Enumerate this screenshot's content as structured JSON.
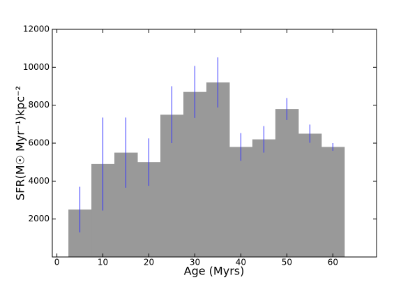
{
  "chart_data": {
    "type": "histogram",
    "x_label": "Age (Myrs)",
    "y_label": "SFR(M☉ Myr⁻¹)kpc⁻²",
    "bins": [
      2.5,
      7.5,
      12.5,
      17.5,
      22.5,
      27.5,
      32.5,
      37.5,
      42.5,
      47.5,
      52.5,
      57.5,
      62.5
    ],
    "values": [
      2500,
      4900,
      5500,
      5000,
      7500,
      8700,
      9200,
      5800,
      6200,
      7800,
      6500,
      5800
    ],
    "errors": [
      1200,
      2450,
      1850,
      1250,
      1500,
      1370,
      1320,
      730,
      700,
      580,
      480,
      200
    ],
    "color": "#999999",
    "error_color": "#3333ff",
    "xlim": [
      -1,
      69.5
    ],
    "xticks": [
      0,
      10,
      20,
      30,
      40,
      50,
      60
    ],
    "ylim": [
      0,
      12000
    ],
    "yticks": [
      2000,
      4000,
      6000,
      8000,
      10000,
      12000
    ]
  }
}
